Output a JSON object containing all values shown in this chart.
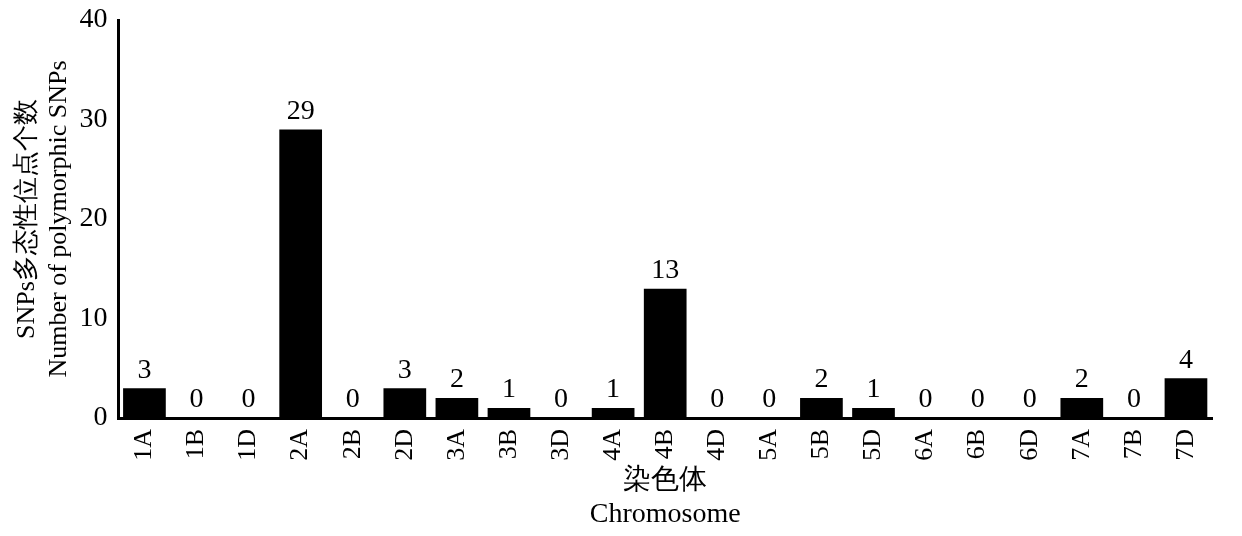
{
  "chart_data": {
    "type": "bar",
    "categories": [
      "1A",
      "1B",
      "1D",
      "2A",
      "2B",
      "2D",
      "3A",
      "3B",
      "3D",
      "4A",
      "4B",
      "4D",
      "5A",
      "5B",
      "5D",
      "6A",
      "6B",
      "6D",
      "7A",
      "7B",
      "7D"
    ],
    "values": [
      3,
      0,
      0,
      29,
      0,
      3,
      2,
      1,
      0,
      1,
      13,
      0,
      0,
      2,
      1,
      0,
      0,
      0,
      2,
      0,
      4
    ],
    "color": "#000000",
    "ylim": [
      0,
      40
    ],
    "yticks": [
      0,
      10,
      20,
      30,
      40
    ],
    "grid": false,
    "legend": false,
    "data_labels": true,
    "xlabel": "染色体\nChromosome",
    "ylabel": "SNPs多态性位点个数\nNumber of polymorphic SNPs"
  }
}
